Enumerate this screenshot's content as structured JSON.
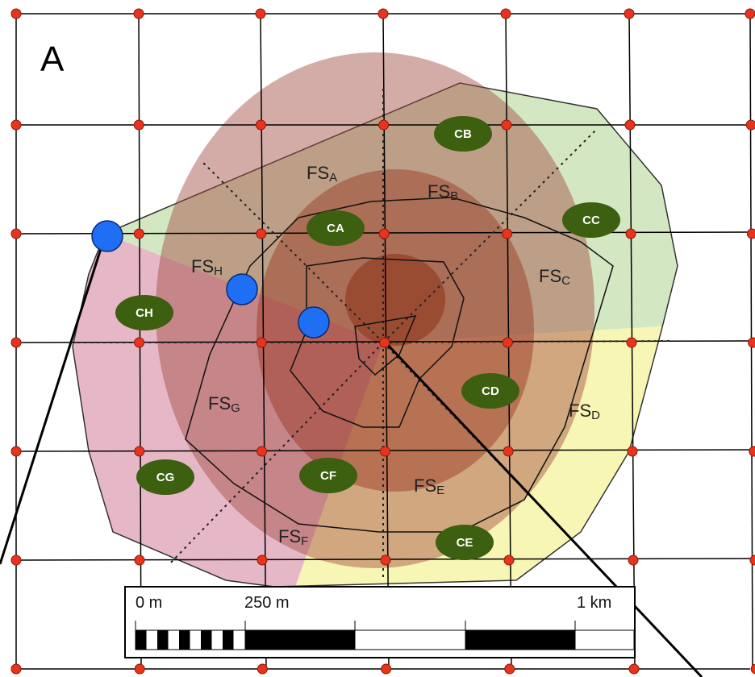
{
  "panel_label": "A",
  "zones": [
    {
      "main": "FS",
      "sub": "A"
    },
    {
      "main": "FS",
      "sub": "B"
    },
    {
      "main": "FS",
      "sub": "C"
    },
    {
      "main": "FS",
      "sub": "D"
    },
    {
      "main": "FS",
      "sub": "E"
    },
    {
      "main": "FS",
      "sub": "F"
    },
    {
      "main": "FS",
      "sub": "G"
    },
    {
      "main": "FS",
      "sub": "H"
    }
  ],
  "clusters": [
    "CA",
    "CB",
    "CC",
    "CD",
    "CE",
    "CF",
    "CG",
    "CH"
  ],
  "scale_bar": {
    "labels": [
      "0 m",
      "250 m",
      "1 km"
    ]
  }
}
